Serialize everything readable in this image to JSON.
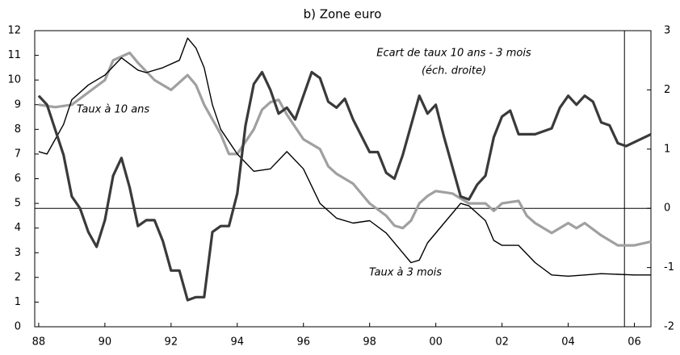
{
  "chart_data": {
    "type": "line",
    "title": "b) Zone euro",
    "xlim": [
      1987.88,
      2006.5
    ],
    "xticks": [
      {
        "value": 1988,
        "label": "88"
      },
      {
        "value": 1990,
        "label": "90"
      },
      {
        "value": 1992,
        "label": "92"
      },
      {
        "value": 1994,
        "label": "94"
      },
      {
        "value": 1996,
        "label": "96"
      },
      {
        "value": 1998,
        "label": "98"
      },
      {
        "value": 2000,
        "label": "00"
      },
      {
        "value": 2002,
        "label": "02"
      },
      {
        "value": 2004,
        "label": "04"
      },
      {
        "value": 2006,
        "label": "06"
      }
    ],
    "ylim": [
      0,
      12
    ],
    "yticks": [
      0,
      1,
      2,
      3,
      4,
      5,
      6,
      7,
      8,
      9,
      10,
      11,
      12
    ],
    "y2lim": [
      -2,
      3
    ],
    "y2ticks": [
      -2,
      -1,
      0,
      1,
      2,
      3
    ],
    "y2_reference_line": 0,
    "vertical_line": 2005.7,
    "annotation": "(éch. droite)",
    "series": [
      {
        "name": "Taux à 10 ans",
        "color": "#a0a0a0",
        "axis": "y",
        "x": [
          1988,
          1988.5,
          1989,
          1989.5,
          1990,
          1990.25,
          1990.75,
          1991,
          1991.5,
          1992,
          1992.5,
          1992.75,
          1993,
          1993.5,
          1993.75,
          1994,
          1994.5,
          1994.75,
          1995,
          1995.25,
          1995.5,
          1996,
          1996.5,
          1996.75,
          1997,
          1997.5,
          1998,
          1998.5,
          1998.75,
          1999,
          1999.25,
          1999.5,
          1999.75,
          2000,
          2000.5,
          2001,
          2001.5,
          2001.75,
          2002,
          2002.5,
          2002.75,
          2003,
          2003.5,
          2004,
          2004.25,
          2004.5,
          2005,
          2005.5,
          2006,
          2006.5
        ],
        "values": [
          9.0,
          8.9,
          9.0,
          9.5,
          10.0,
          10.8,
          11.1,
          10.7,
          10.0,
          9.6,
          10.2,
          9.8,
          9.0,
          7.8,
          7.0,
          7.0,
          8.0,
          8.8,
          9.1,
          9.2,
          8.6,
          7.6,
          7.2,
          6.5,
          6.2,
          5.8,
          5.0,
          4.5,
          4.1,
          4.0,
          4.3,
          5.0,
          5.3,
          5.5,
          5.4,
          5.0,
          5.0,
          4.7,
          5.0,
          5.1,
          4.5,
          4.2,
          3.8,
          4.2,
          4.0,
          4.2,
          3.7,
          3.3,
          3.3,
          3.45
        ]
      },
      {
        "name": "Taux à 3 mois",
        "color": "#000000",
        "axis": "y",
        "x": [
          1988,
          1988.25,
          1988.75,
          1989,
          1989.5,
          1990,
          1990.5,
          1991,
          1991.25,
          1991.75,
          1992.25,
          1992.5,
          1992.75,
          1993,
          1993.25,
          1993.5,
          1994,
          1994.5,
          1995,
          1995.5,
          1996,
          1996.5,
          1997,
          1997.5,
          1998,
          1998.5,
          1999,
          1999.25,
          1999.5,
          1999.75,
          2000.25,
          2000.75,
          2001,
          2001.5,
          2001.75,
          2002,
          2002.5,
          2003,
          2003.5,
          2004,
          2004.5,
          2005,
          2006,
          2006.5
        ],
        "values": [
          7.1,
          7.0,
          8.2,
          9.2,
          9.8,
          10.2,
          10.9,
          10.4,
          10.3,
          10.5,
          10.8,
          11.7,
          11.3,
          10.5,
          9.0,
          8.0,
          7.0,
          6.3,
          6.4,
          7.1,
          6.4,
          5.0,
          4.4,
          4.2,
          4.3,
          3.8,
          3.0,
          2.6,
          2.7,
          3.4,
          4.2,
          5.0,
          4.9,
          4.3,
          3.5,
          3.3,
          3.3,
          2.6,
          2.1,
          2.05,
          2.1,
          2.15,
          2.1,
          2.1
        ]
      },
      {
        "name": "Ecart de taux 10 ans - 3 mois",
        "color": "#3a3a3a",
        "axis": "y2",
        "x": [
          1988,
          1988.25,
          1988.75,
          1989,
          1989.25,
          1989.5,
          1989.75,
          1990,
          1990.25,
          1990.5,
          1990.75,
          1991,
          1991.25,
          1991.5,
          1991.75,
          1992,
          1992.25,
          1992.5,
          1992.75,
          1993,
          1993.25,
          1993.5,
          1993.75,
          1994,
          1994.25,
          1994.5,
          1994.75,
          1995,
          1995.25,
          1995.5,
          1995.75,
          1996,
          1996.25,
          1996.5,
          1996.75,
          1997,
          1997.25,
          1997.5,
          1998,
          1998.25,
          1998.5,
          1998.75,
          1999,
          1999.5,
          1999.75,
          2000,
          2000.25,
          2000.75,
          2001,
          2001.25,
          2001.5,
          2001.75,
          2002,
          2002.25,
          2002.5,
          2003,
          2003.5,
          2003.75,
          2004,
          2004.25,
          2004.5,
          2004.75,
          2005,
          2005.25,
          2005.5,
          2005.75,
          2006.5
        ],
        "values": [
          1.9,
          1.75,
          0.9,
          0.2,
          0.0,
          -0.4,
          -0.65,
          -0.2,
          0.55,
          0.85,
          0.35,
          -0.3,
          -0.2,
          -0.2,
          -0.55,
          -1.05,
          -1.05,
          -1.55,
          -1.5,
          -1.5,
          -0.4,
          -0.3,
          -0.3,
          0.25,
          1.4,
          2.1,
          2.3,
          2.0,
          1.6,
          1.7,
          1.5,
          1.9,
          2.3,
          2.2,
          1.8,
          1.7,
          1.85,
          1.5,
          0.95,
          0.95,
          0.6,
          0.5,
          0.9,
          1.9,
          1.6,
          1.75,
          1.2,
          0.2,
          0.15,
          0.4,
          0.55,
          1.2,
          1.55,
          1.65,
          1.25,
          1.25,
          1.35,
          1.7,
          1.9,
          1.75,
          1.9,
          1.8,
          1.45,
          1.4,
          1.1,
          1.05,
          1.25
        ]
      }
    ]
  }
}
